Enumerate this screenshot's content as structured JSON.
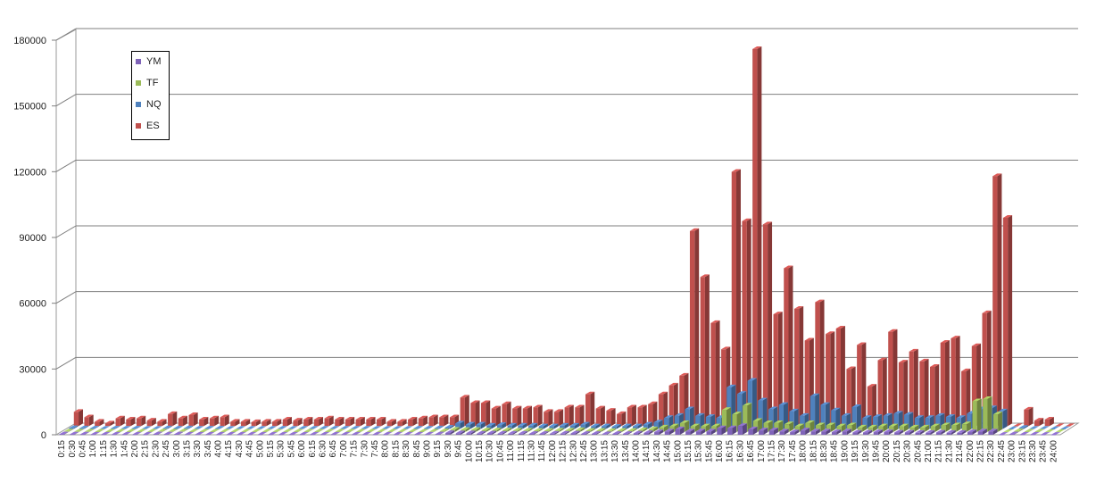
{
  "chart_data": {
    "type": "bar",
    "title": "",
    "xlabel": "",
    "ylabel": "",
    "ylim": [
      0,
      180000
    ],
    "yticks": [
      0,
      30000,
      60000,
      90000,
      120000,
      150000,
      180000
    ],
    "grid": true,
    "legend_position": "top-left",
    "categories": [
      "0:15",
      "0:30",
      "0:45",
      "1:00",
      "1:15",
      "1:30",
      "1:45",
      "2:00",
      "2:15",
      "2:30",
      "2:45",
      "3:00",
      "3:15",
      "3:30",
      "3:45",
      "4:00",
      "4:15",
      "4:30",
      "4:45",
      "5:00",
      "5:15",
      "5:30",
      "5:45",
      "6:00",
      "6:15",
      "6:30",
      "6:45",
      "7:00",
      "7:15",
      "7:30",
      "7:45",
      "8:00",
      "8:15",
      "8:30",
      "8:45",
      "9:00",
      "9:15",
      "9:30",
      "9:45",
      "10:00",
      "10:15",
      "10:30",
      "10:45",
      "11:00",
      "11:15",
      "11:30",
      "11:45",
      "12:00",
      "12:15",
      "12:30",
      "12:45",
      "13:00",
      "13:15",
      "13:30",
      "13:45",
      "14:00",
      "14:15",
      "14:30",
      "14:45",
      "15:00",
      "15:15",
      "15:30",
      "15:45",
      "16:00",
      "16:15",
      "16:30",
      "16:45",
      "17:00",
      "17:15",
      "17:30",
      "17:45",
      "18:00",
      "18:15",
      "18:30",
      "18:45",
      "19:00",
      "19:15",
      "19:30",
      "19:45",
      "20:00",
      "20:15",
      "20:30",
      "20:45",
      "21:00",
      "21:15",
      "21:30",
      "21:45",
      "22:00",
      "22:15",
      "22:30",
      "22:45",
      "23:00",
      "23:15",
      "23:30",
      "23:45",
      "24:00"
    ],
    "series": [
      {
        "name": "YM",
        "color": "#7f63b8",
        "values": [
          200,
          150,
          150,
          100,
          100,
          100,
          100,
          80,
          60,
          200,
          150,
          200,
          100,
          100,
          100,
          60,
          60,
          60,
          60,
          60,
          60,
          60,
          80,
          80,
          80,
          80,
          80,
          80,
          80,
          60,
          60,
          60,
          60,
          100,
          100,
          100,
          200,
          800,
          700,
          700,
          500,
          600,
          500,
          500,
          500,
          400,
          400,
          500,
          500,
          600,
          400,
          400,
          300,
          400,
          400,
          600,
          800,
          1200,
          1500,
          2500,
          1500,
          1500,
          1500,
          3000,
          3000,
          4000,
          2500,
          2000,
          2000,
          1500,
          1200,
          2000,
          1500,
          1500,
          1200,
          1500,
          1000,
          1000,
          1200,
          1200,
          1000,
          1000,
          900,
          900,
          1000,
          900,
          900,
          1200,
          1500,
          1500,
          0,
          200,
          60,
          60,
          0,
          0
        ]
      },
      {
        "name": "TF",
        "color": "#9bbb59",
        "values": [
          200,
          150,
          150,
          100,
          100,
          100,
          100,
          80,
          60,
          200,
          150,
          200,
          100,
          100,
          100,
          60,
          60,
          60,
          60,
          60,
          60,
          60,
          80,
          80,
          80,
          80,
          80,
          80,
          80,
          60,
          60,
          60,
          60,
          100,
          100,
          150,
          300,
          1000,
          900,
          900,
          700,
          700,
          700,
          600,
          600,
          500,
          500,
          600,
          600,
          800,
          500,
          500,
          400,
          500,
          500,
          800,
          1200,
          2000,
          2500,
          4000,
          2500,
          2500,
          2500,
          10000,
          8000,
          12000,
          5000,
          4000,
          4000,
          3500,
          2500,
          4000,
          3000,
          3000,
          2500,
          3000,
          2000,
          2000,
          2500,
          2500,
          2500,
          2000,
          2000,
          2500,
          3000,
          3000,
          3500,
          14000,
          15000,
          8000,
          0,
          300,
          80,
          80,
          0,
          0
        ]
      },
      {
        "name": "NQ",
        "color": "#4f81bd",
        "values": [
          400,
          300,
          200,
          100,
          200,
          150,
          200,
          100,
          100,
          300,
          200,
          300,
          150,
          200,
          200,
          100,
          100,
          100,
          100,
          100,
          150,
          100,
          150,
          150,
          150,
          150,
          150,
          150,
          150,
          100,
          100,
          100,
          100,
          200,
          200,
          300,
          600,
          2500,
          2000,
          2000,
          1500,
          1800,
          1500,
          1500,
          1500,
          1200,
          1200,
          1500,
          1500,
          2000,
          1200,
          1200,
          1000,
          1200,
          1200,
          2000,
          3000,
          5000,
          6000,
          9000,
          6000,
          5500,
          5000,
          19000,
          16000,
          22000,
          13000,
          9000,
          11000,
          8000,
          6000,
          15000,
          11000,
          8500,
          6000,
          10000,
          5000,
          5500,
          6000,
          7000,
          6500,
          5000,
          5000,
          6000,
          5500,
          5000,
          7000,
          9000,
          9500,
          8000,
          0,
          500,
          100,
          100,
          0,
          0
        ]
      },
      {
        "name": "ES",
        "color": "#c0504d",
        "values": [
          6500,
          4000,
          2000,
          1200,
          3500,
          3000,
          3500,
          2500,
          2000,
          5500,
          3500,
          5000,
          3000,
          3500,
          4000,
          2000,
          2000,
          1800,
          2000,
          2000,
          3000,
          2500,
          3000,
          3000,
          3500,
          3000,
          3000,
          3000,
          3000,
          3000,
          2000,
          2000,
          3000,
          3500,
          4000,
          4000,
          4000,
          13000,
          10500,
          10500,
          8000,
          10000,
          8000,
          8000,
          8500,
          6500,
          6500,
          8500,
          8500,
          14500,
          8000,
          7000,
          5500,
          8500,
          8500,
          10000,
          14500,
          18500,
          23000,
          89000,
          68000,
          47000,
          35000,
          116000,
          93500,
          172000,
          92000,
          51000,
          72000,
          53500,
          39000,
          56500,
          42000,
          44500,
          26000,
          37000,
          18000,
          30000,
          43000,
          29000,
          34000,
          29500,
          27000,
          38000,
          40000,
          25000,
          36500,
          51500,
          114000,
          95000,
          0,
          7500,
          2500,
          3000,
          0,
          0
        ]
      }
    ]
  }
}
